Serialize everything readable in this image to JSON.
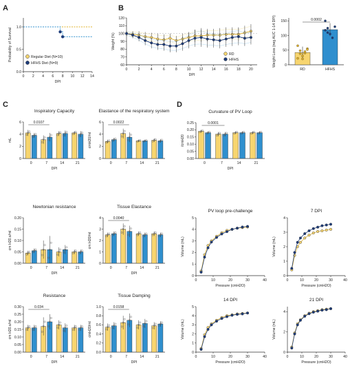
{
  "colors": {
    "rd": "#f7d56f",
    "rd_dark": "#e0b12a",
    "hfhs": "#2f8fce",
    "hfhs_dark": "#1d3c7a",
    "line_rd": "#f0c419",
    "line_hfhs": "#2f7fc6",
    "axis": "#333333",
    "sig": "#333333"
  },
  "panels": {
    "A": "A",
    "B": "B",
    "C": "C",
    "D": "D"
  },
  "chart_data": [
    {
      "id": "A",
      "type": "line",
      "subtype": "step-survival",
      "xlabel": "DPI",
      "ylabel": "Probability of Survival",
      "xlim": [
        0,
        14
      ],
      "ylim": [
        0,
        1.2
      ],
      "xticks": [
        "0",
        "2",
        "4",
        "6",
        "8",
        "10",
        "12",
        "14"
      ],
      "yticks": [
        "0.0",
        "0.5",
        "1.0"
      ],
      "legend_position": "bottom-left",
      "series": [
        {
          "name": "Regular Diet (N=10)",
          "color": "rd",
          "points": [
            [
              0,
              1
            ],
            [
              14,
              1
            ]
          ]
        },
        {
          "name": "HFHS Diet (N=9)",
          "color": "hfhs",
          "points": [
            [
              0,
              1
            ],
            [
              7.5,
              1
            ],
            [
              7.5,
              0.89
            ],
            [
              8,
              0.89
            ],
            [
              8,
              0.78
            ],
            [
              14,
              0.78
            ]
          ]
        }
      ]
    },
    {
      "id": "B1",
      "type": "line",
      "xlabel": "DPI",
      "ylabel": "Weight (%)",
      "xlim": [
        0,
        21
      ],
      "ylim": [
        60,
        120
      ],
      "xticks": [
        "0",
        "2",
        "4",
        "6",
        "8",
        "10",
        "12",
        "14",
        "16",
        "18",
        "20"
      ],
      "yticks": [
        "60",
        "70",
        "80",
        "90",
        "100",
        "110",
        "120"
      ],
      "legend_position": "bottom-right",
      "series": [
        {
          "name": "RD",
          "color": "rd",
          "x": [
            0,
            1,
            2,
            3,
            4,
            5,
            6,
            7,
            8,
            9,
            10,
            11,
            12,
            13,
            14,
            15,
            16,
            17,
            18,
            19,
            20
          ],
          "y": [
            100,
            99,
            98,
            96,
            95,
            93,
            92,
            94,
            91,
            93,
            95,
            97,
            97,
            98,
            98,
            98,
            99,
            99,
            99,
            101,
            103
          ],
          "err": [
            3,
            4,
            5,
            6,
            6,
            7,
            7,
            6,
            6,
            7,
            7,
            8,
            8,
            8,
            8,
            9,
            9,
            9,
            9,
            9,
            9
          ]
        },
        {
          "name": "HFHS",
          "color": "hfhs",
          "x": [
            0,
            1,
            2,
            3,
            4,
            5,
            6,
            7,
            8,
            9,
            10,
            11,
            12,
            13,
            14,
            15,
            16,
            17,
            18,
            19,
            20
          ],
          "y": [
            100,
            98,
            95,
            91,
            88,
            86,
            86,
            84,
            84,
            87,
            91,
            94,
            95,
            93,
            92,
            91,
            93,
            95,
            96,
            94,
            95
          ],
          "err": [
            3,
            4,
            5,
            6,
            7,
            7,
            8,
            8,
            8,
            9,
            10,
            11,
            12,
            11,
            10,
            10,
            10,
            11,
            11,
            10,
            9
          ]
        }
      ]
    },
    {
      "id": "B2",
      "type": "bar",
      "ylabel": "Weight Loss (neg AUC 1-14 DPI)",
      "ylim": [
        0,
        160
      ],
      "yticks": [
        "0",
        "50",
        "100",
        "150"
      ],
      "categories": [
        "RD",
        "HFHS"
      ],
      "values": [
        42,
        120
      ],
      "err": [
        20,
        22
      ],
      "annotations": [
        "0.0002"
      ],
      "points": [
        [
          22,
          48,
          30,
          40,
          55,
          65,
          38,
          20,
          45,
          52
        ],
        [
          150,
          125,
          105,
          92,
          130,
          118,
          110
        ]
      ]
    },
    {
      "id": "C1",
      "type": "bar",
      "title": "Inspiratory Capacity",
      "ylabel": "mL",
      "xlabel": "DPI",
      "categories": [
        "0",
        "7",
        "14",
        "21"
      ],
      "ylim": [
        0,
        6
      ],
      "yticks": [
        "0",
        "2",
        "4",
        "6"
      ],
      "series": [
        {
          "name": "RD",
          "values": [
            4.2,
            3.1,
            4.1,
            4.2
          ],
          "err": [
            0.5,
            0.7,
            0.4,
            0.3
          ]
        },
        {
          "name": "HFHS",
          "values": [
            3.8,
            3.5,
            4.1,
            4.0
          ],
          "err": [
            0.4,
            0.7,
            0.5,
            0.5
          ]
        }
      ],
      "annotations": [
        "0.0107"
      ]
    },
    {
      "id": "C2",
      "type": "bar",
      "title": "Elastance of the respiratory system",
      "ylabel": "cmH20/ml",
      "categories": [
        "0",
        "7",
        "14",
        "21"
      ],
      "ylim": [
        0,
        6
      ],
      "yticks": [
        "0",
        "2",
        "4",
        "6"
      ],
      "series": [
        {
          "name": "RD",
          "values": [
            2.8,
            4.1,
            2.9,
            3.0
          ],
          "err": [
            0.3,
            0.8,
            0.2,
            0.3
          ]
        },
        {
          "name": "HFHS",
          "values": [
            3.1,
            3.5,
            2.9,
            2.9
          ],
          "err": [
            0.3,
            0.8,
            0.2,
            0.3
          ]
        }
      ],
      "annotations": [
        "0.0022"
      ]
    },
    {
      "id": "C3",
      "type": "bar",
      "title": "Newtonian resistance",
      "ylabel": "cm H20.s/ml",
      "xlabel": "DPI",
      "categories": [
        "0",
        "7",
        "14",
        "21"
      ],
      "ylim": [
        0,
        0.2
      ],
      "yticks": [
        "0.00",
        "0.05",
        "0.10",
        "0.15",
        "0.20"
      ],
      "series": [
        {
          "name": "RD",
          "values": [
            0.045,
            0.06,
            0.05,
            0.05
          ],
          "err": [
            0.01,
            0.04,
            0.02,
            0.01
          ]
        },
        {
          "name": "HFHS",
          "values": [
            0.055,
            0.06,
            0.06,
            0.05
          ],
          "err": [
            0.01,
            0.06,
            0.02,
            0.01
          ]
        }
      ]
    },
    {
      "id": "C4",
      "type": "bar",
      "title": "Tissue Elastance",
      "ylabel": "cm H20/ml",
      "xlabel": "DPI",
      "categories": [
        "0",
        "7",
        "14",
        "21"
      ],
      "ylim": [
        0,
        4
      ],
      "yticks": [
        "0",
        "1",
        "2",
        "3",
        "4"
      ],
      "series": [
        {
          "name": "RD",
          "values": [
            2.5,
            3.0,
            2.6,
            2.6
          ],
          "err": [
            0.2,
            0.5,
            0.2,
            0.2
          ]
        },
        {
          "name": "HFHS",
          "values": [
            2.6,
            2.8,
            2.5,
            2.5
          ],
          "err": [
            0.2,
            0.5,
            0.2,
            0.2
          ]
        }
      ],
      "annotations": [
        "0.0040"
      ]
    },
    {
      "id": "C5",
      "type": "bar",
      "title": "Resistance",
      "ylabel": "cm H20.s/ml",
      "xlabel": "DPI",
      "categories": [
        "0",
        "7",
        "14",
        "21"
      ],
      "ylim": [
        0,
        0.3
      ],
      "yticks": [
        "0.00",
        "0.05",
        "0.10",
        "0.15",
        "0.20",
        "0.25",
        "0.30"
      ],
      "series": [
        {
          "name": "RD",
          "values": [
            0.16,
            0.17,
            0.18,
            0.16
          ],
          "err": [
            0.02,
            0.06,
            0.03,
            0.02
          ]
        },
        {
          "name": "HFHS",
          "values": [
            0.16,
            0.2,
            0.16,
            0.16
          ],
          "err": [
            0.02,
            0.05,
            0.03,
            0.02
          ]
        }
      ],
      "annotations": [
        "0.034"
      ]
    },
    {
      "id": "C6",
      "type": "bar",
      "title": "Tissue Damping",
      "ylabel": "cmH20/ml",
      "xlabel": "DPI",
      "categories": [
        "0",
        "7",
        "14",
        "21"
      ],
      "ylim": [
        0,
        1.0
      ],
      "yticks": [
        "0.0",
        "0.2",
        "0.4",
        "0.6",
        "0.8",
        "1.0"
      ],
      "series": [
        {
          "name": "RD",
          "values": [
            0.55,
            0.65,
            0.6,
            0.58
          ],
          "err": [
            0.08,
            0.15,
            0.1,
            0.08
          ]
        },
        {
          "name": "HFHS",
          "values": [
            0.58,
            0.7,
            0.63,
            0.62
          ],
          "err": [
            0.08,
            0.15,
            0.1,
            0.06
          ]
        }
      ],
      "annotations": [
        "0.0158"
      ]
    },
    {
      "id": "D1",
      "type": "bar",
      "title": "Curvature of PV Loop",
      "ylabel": "/cmH20",
      "xlabel": "DPI",
      "categories": [
        "0",
        "7",
        "14",
        "21"
      ],
      "ylim": [
        0,
        0.25
      ],
      "yticks": [
        "0.00",
        "0.05",
        "0.10",
        "0.15",
        "0.20",
        "0.25"
      ],
      "series": [
        {
          "name": "RD",
          "values": [
            0.19,
            0.17,
            0.18,
            0.18
          ],
          "err": [
            0.01,
            0.015,
            0.01,
            0.01
          ]
        },
        {
          "name": "HFHS",
          "values": [
            0.18,
            0.17,
            0.18,
            0.18
          ],
          "err": [
            0.01,
            0.015,
            0.01,
            0.01
          ]
        }
      ],
      "annotations": [
        "0.0001"
      ]
    },
    {
      "id": "D2",
      "type": "line",
      "title": "PV loop pre-challenge",
      "xlabel": "Pressure  (cmH2O)",
      "ylabel": "Volume (mL)",
      "xlim": [
        0,
        40
      ],
      "ylim": [
        0,
        5
      ],
      "xticks": [
        "0",
        "10",
        "20",
        "30",
        "40"
      ],
      "yticks": [
        "0",
        "1",
        "2",
        "3",
        "4",
        "5"
      ],
      "series": [
        {
          "name": "RD",
          "x": [
            3,
            5,
            7,
            9,
            12,
            15,
            18,
            21,
            24,
            27,
            30
          ],
          "y": [
            0.4,
            1.8,
            2.6,
            3.0,
            3.4,
            3.7,
            3.9,
            4.0,
            4.1,
            4.15,
            4.2
          ]
        },
        {
          "name": "HFHS",
          "x": [
            3,
            5,
            7,
            9,
            12,
            15,
            18,
            21,
            24,
            27,
            30
          ],
          "y": [
            0.3,
            1.6,
            2.4,
            2.9,
            3.3,
            3.6,
            3.8,
            4.0,
            4.1,
            4.2,
            4.25
          ]
        }
      ]
    },
    {
      "id": "D3",
      "type": "line",
      "title": "7 DPI",
      "xlabel": "Pressure (cmH2O)",
      "ylabel": "Volume (mL)",
      "xlim": [
        0,
        40
      ],
      "ylim": [
        0,
        4
      ],
      "xticks": [
        "0",
        "10",
        "20",
        "30",
        "40"
      ],
      "yticks": [
        "0",
        "1",
        "2",
        "3",
        "4"
      ],
      "series": [
        {
          "name": "RD",
          "x": [
            3,
            5,
            7,
            9,
            12,
            15,
            18,
            21,
            24,
            27,
            30
          ],
          "y": [
            0.4,
            1.4,
            2.0,
            2.3,
            2.6,
            2.8,
            2.95,
            3.05,
            3.1,
            3.15,
            3.2
          ]
        },
        {
          "name": "HFHS",
          "x": [
            3,
            5,
            7,
            9,
            12,
            15,
            18,
            21,
            24,
            27,
            30
          ],
          "y": [
            0.5,
            1.6,
            2.3,
            2.6,
            2.9,
            3.1,
            3.25,
            3.35,
            3.45,
            3.5,
            3.55
          ]
        }
      ]
    },
    {
      "id": "D4",
      "type": "line",
      "title": "14 DPI",
      "xlabel": "Pressure  (cmH2O)",
      "ylabel": "Volume (mL)",
      "xlim": [
        0,
        40
      ],
      "ylim": [
        0,
        5
      ],
      "xticks": [
        "0",
        "10",
        "20",
        "30",
        "40"
      ],
      "yticks": [
        "0",
        "1",
        "2",
        "3",
        "4",
        "5"
      ],
      "series": [
        {
          "name": "RD",
          "x": [
            3,
            5,
            7,
            9,
            12,
            15,
            18,
            21,
            24,
            27,
            30
          ],
          "y": [
            0.4,
            1.9,
            2.7,
            3.1,
            3.5,
            3.8,
            4.0,
            4.1,
            4.2,
            4.25,
            4.3
          ]
        },
        {
          "name": "HFHS",
          "x": [
            3,
            5,
            7,
            9,
            12,
            15,
            18,
            21,
            24,
            27,
            30
          ],
          "y": [
            0.3,
            1.7,
            2.5,
            3.0,
            3.4,
            3.7,
            3.9,
            4.05,
            4.15,
            4.2,
            4.3
          ]
        }
      ]
    },
    {
      "id": "D5",
      "type": "line",
      "title": "21 DPI",
      "xlabel": "Pressure (cmH2O)",
      "ylabel": "Volume (mL)",
      "xlim": [
        0,
        40
      ],
      "ylim": [
        0,
        4.5
      ],
      "xticks": [
        "0",
        "10",
        "20",
        "30",
        "40"
      ],
      "yticks": [
        "0",
        "2",
        "4"
      ],
      "series": [
        {
          "name": "RD",
          "x": [
            3,
            5,
            7,
            9,
            12,
            15,
            18,
            21,
            24,
            27,
            30
          ],
          "y": [
            0.5,
            1.9,
            2.8,
            3.2,
            3.6,
            3.85,
            4.0,
            4.1,
            4.2,
            4.25,
            4.3
          ]
        },
        {
          "name": "HFHS",
          "x": [
            3,
            5,
            7,
            9,
            12,
            15,
            18,
            21,
            24,
            27,
            30
          ],
          "y": [
            0.4,
            1.8,
            2.7,
            3.15,
            3.55,
            3.8,
            3.95,
            4.05,
            4.15,
            4.2,
            4.3
          ]
        }
      ]
    }
  ]
}
